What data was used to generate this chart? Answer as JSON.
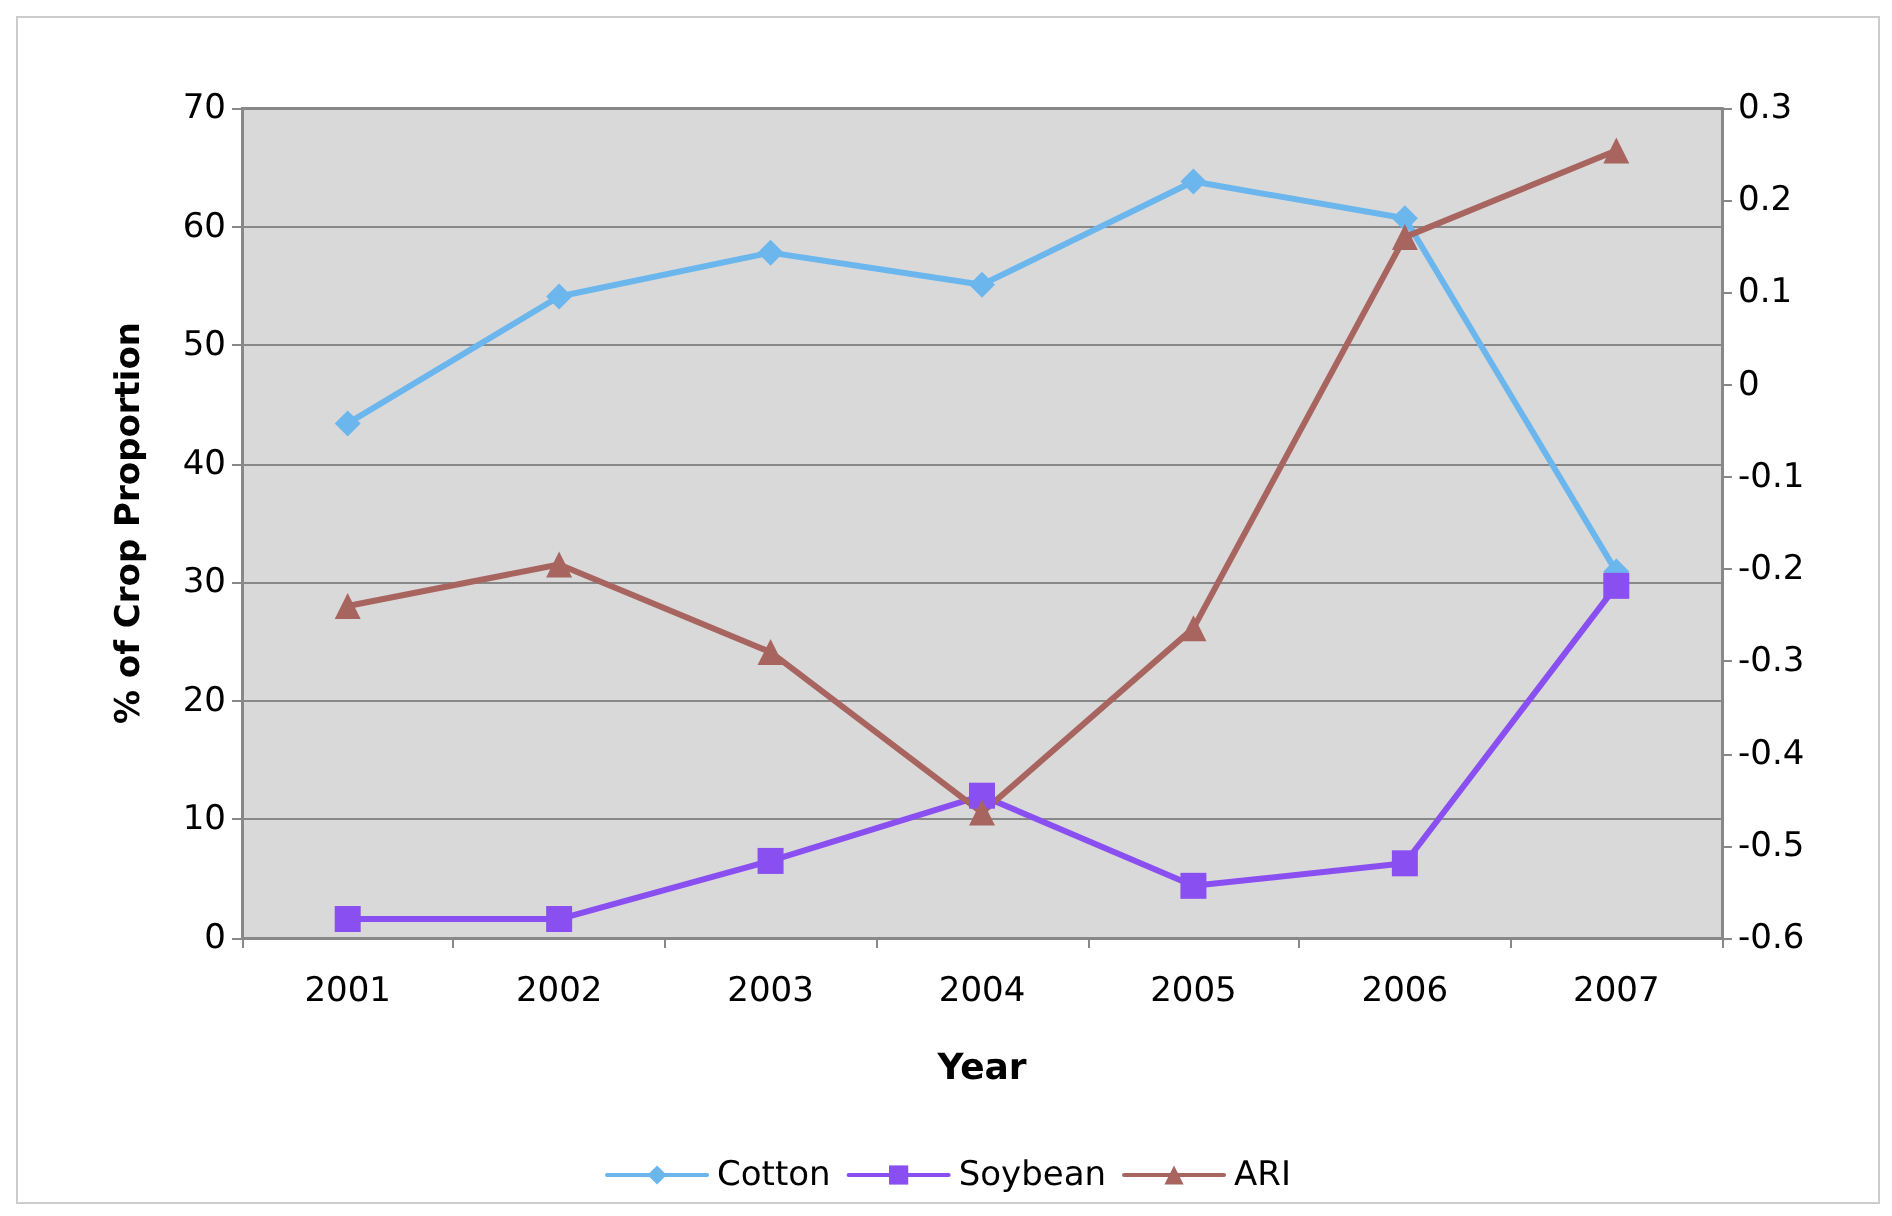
{
  "chart_data": {
    "type": "line",
    "xlabel": "Year",
    "ylabel": "% of Crop Proportion",
    "categories": [
      "2001",
      "2002",
      "2003",
      "2004",
      "2005",
      "2006",
      "2007"
    ],
    "series": [
      {
        "name": "Cotton",
        "color": "#6cb6ee",
        "marker": "diamond",
        "values": [
          43.4,
          54.1,
          57.8,
          55.1,
          63.8,
          60.7,
          30.9
        ]
      },
      {
        "name": "Soybean",
        "color": "#8a4ff0",
        "marker": "square",
        "values": [
          1.6,
          1.6,
          6.5,
          12.0,
          4.4,
          6.3,
          29.7
        ]
      },
      {
        "name": "ARI",
        "color": "#a8645f",
        "marker": "triangle",
        "axis": "y2",
        "values": [
          -0.24,
          -0.195,
          -0.29,
          -0.464,
          -0.264,
          0.16,
          0.254
        ]
      }
    ],
    "ylim": [
      0,
      70
    ],
    "yticks": [
      0,
      10,
      20,
      30,
      40,
      50,
      60,
      70
    ],
    "y2lim": [
      -0.6,
      0.3
    ],
    "y2ticks": [
      -0.6,
      -0.5,
      -0.4,
      -0.3,
      -0.2,
      -0.1,
      0,
      0.1,
      0.2,
      0.3
    ],
    "grid": "y",
    "legend": "bottom"
  }
}
